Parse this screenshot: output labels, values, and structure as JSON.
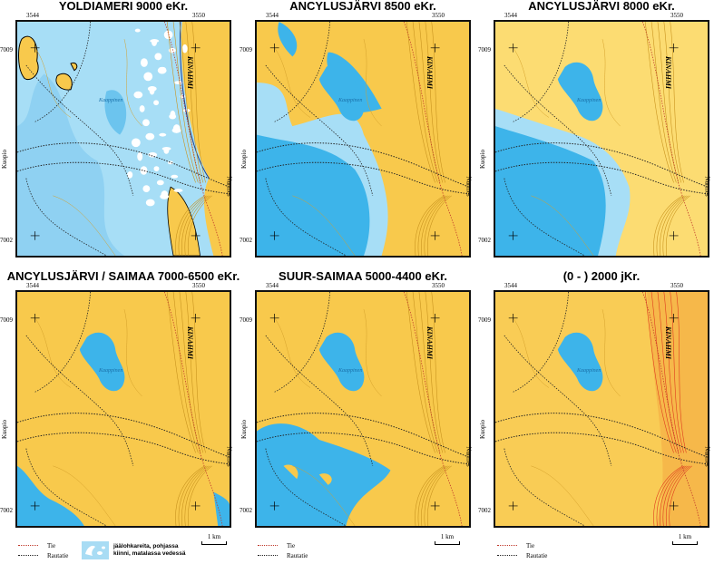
{
  "panels": [
    {
      "title": "YOLDIAMERI 9000 eKr.",
      "stage": "yoldia"
    },
    {
      "title": "ANCYLUSJÄRVI 8500 eKr.",
      "stage": "ancylus8500"
    },
    {
      "title": "ANCYLUSJÄRVI 8000 eKr.",
      "stage": "ancylus8000"
    },
    {
      "title": "ANCYLUSJÄRVI / SAIMAA 7000-6500 eKr.",
      "stage": "saimaa7000"
    },
    {
      "title": "SUUR-SAIMAA 5000-4400 eKr.",
      "stage": "suursaimaa"
    },
    {
      "title": "(0 - ) 2000 jKr.",
      "stage": "present"
    }
  ],
  "map_labels": {
    "x_west": "3544",
    "x_east": "3550",
    "y_north": "7009",
    "y_south": "7002",
    "west_town": "Kuopio",
    "east_town": "Nurmes",
    "hill": "KINAHMI",
    "lake": "Kaappinen"
  },
  "legend": {
    "road": "Tie",
    "railway": "Rautatie",
    "ice": "jäälohkareita, pohjassa kiinni, matalassa vedessä",
    "scale": "1 km"
  },
  "colors": {
    "land": "#f8c94c",
    "land_light": "#fcdc72",
    "water": "#3db4ea",
    "water_shallow": "#a7def6",
    "ice": "#ffffff",
    "road": "#c0392b",
    "railway": "#222222",
    "contour_modern": "#e03b1e"
  }
}
